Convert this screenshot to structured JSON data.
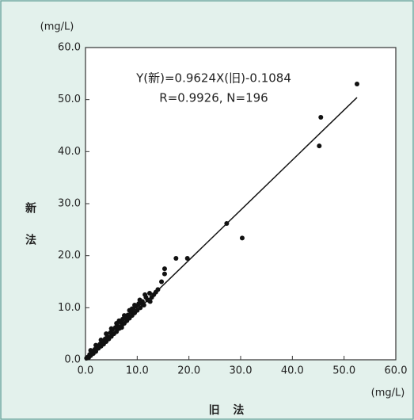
{
  "chart_data": {
    "type": "scatter",
    "annotations": [
      "Y(新)=0.9624X(旧)-0.1084",
      "R=0.9926, N=196"
    ],
    "xlabel": "旧 法",
    "ylabel": "新法",
    "x_unit": "(mg/L)",
    "y_unit": "(mg/L)",
    "color": "#111111",
    "xlim": [
      0,
      60
    ],
    "ylim": [
      0,
      60
    ],
    "xticks": [
      {
        "value": 0,
        "label": "0.0"
      },
      {
        "value": 10,
        "label": "10.0"
      },
      {
        "value": 20,
        "label": "20.0"
      },
      {
        "value": 30,
        "label": "30.0"
      },
      {
        "value": 40,
        "label": "40.0"
      },
      {
        "value": 50,
        "label": "50.0"
      },
      {
        "value": 60,
        "label": "60.0"
      }
    ],
    "yticks": [
      {
        "value": 0,
        "label": "0.0"
      },
      {
        "value": 10,
        "label": "10.0"
      },
      {
        "value": 20,
        "label": "20.0"
      },
      {
        "value": 30,
        "label": "30.0"
      },
      {
        "value": 40,
        "label": "40.0"
      },
      {
        "value": 50,
        "label": "50.0"
      },
      {
        "value": 60,
        "label": "60.0"
      }
    ],
    "x": [
      0.2,
      0.4,
      0.6,
      0.8,
      1.0,
      1.2,
      1.5,
      1.8,
      2.0,
      2.2,
      2.5,
      2.8,
      3.0,
      3.2,
      3.5,
      3.8,
      4.0,
      4.2,
      4.5,
      4.8,
      5.0,
      5.2,
      5.5,
      5.8,
      6.0,
      6.2,
      6.5,
      6.8,
      7.0,
      7.2,
      7.5,
      7.8,
      8.0,
      8.2,
      8.5,
      8.8,
      9.0,
      9.2,
      9.5,
      9.8,
      10.0,
      10.3,
      10.6,
      11.0,
      11.3,
      11.7,
      12.0,
      12.4,
      12.8,
      13.2,
      13.6,
      14.0,
      14.7,
      15.3,
      15.3,
      17.5,
      19.7,
      27.3,
      30.3,
      45.2,
      45.5,
      52.5,
      3.0,
      5.0,
      6.0,
      7.5,
      8.5,
      9.5,
      10.5,
      11.5,
      12.5,
      1.0,
      2.0,
      4.0,
      6.5,
      7.0,
      9.0,
      11.0
    ],
    "values": [
      0.3,
      0.5,
      0.4,
      1.0,
      0.8,
      1.5,
      1.2,
      2.0,
      1.6,
      2.5,
      2.2,
      3.0,
      2.6,
      3.5,
      3.0,
      4.0,
      3.5,
      4.5,
      4.0,
      5.2,
      4.5,
      5.8,
      5.0,
      6.2,
      5.4,
      6.5,
      6.0,
      7.2,
      6.5,
      7.8,
      7.0,
      8.2,
      7.5,
      8.6,
      8.0,
      9.2,
      8.5,
      9.8,
      9.0,
      10.3,
      9.5,
      10.8,
      10.0,
      11.2,
      10.5,
      12.0,
      11.5,
      12.8,
      12.0,
      12.5,
      13.0,
      13.5,
      15.0,
      16.5,
      17.5,
      19.5,
      19.5,
      26.2,
      23.4,
      41.1,
      46.6,
      53.0,
      3.8,
      6.0,
      7.0,
      8.5,
      9.5,
      10.5,
      11.5,
      12.5,
      11.2,
      1.8,
      2.8,
      5.0,
      7.5,
      6.2,
      9.8,
      10.8
    ],
    "fit_line": {
      "x": [
        0,
        52.5
      ],
      "values": [
        -0.1,
        50.4
      ]
    }
  }
}
